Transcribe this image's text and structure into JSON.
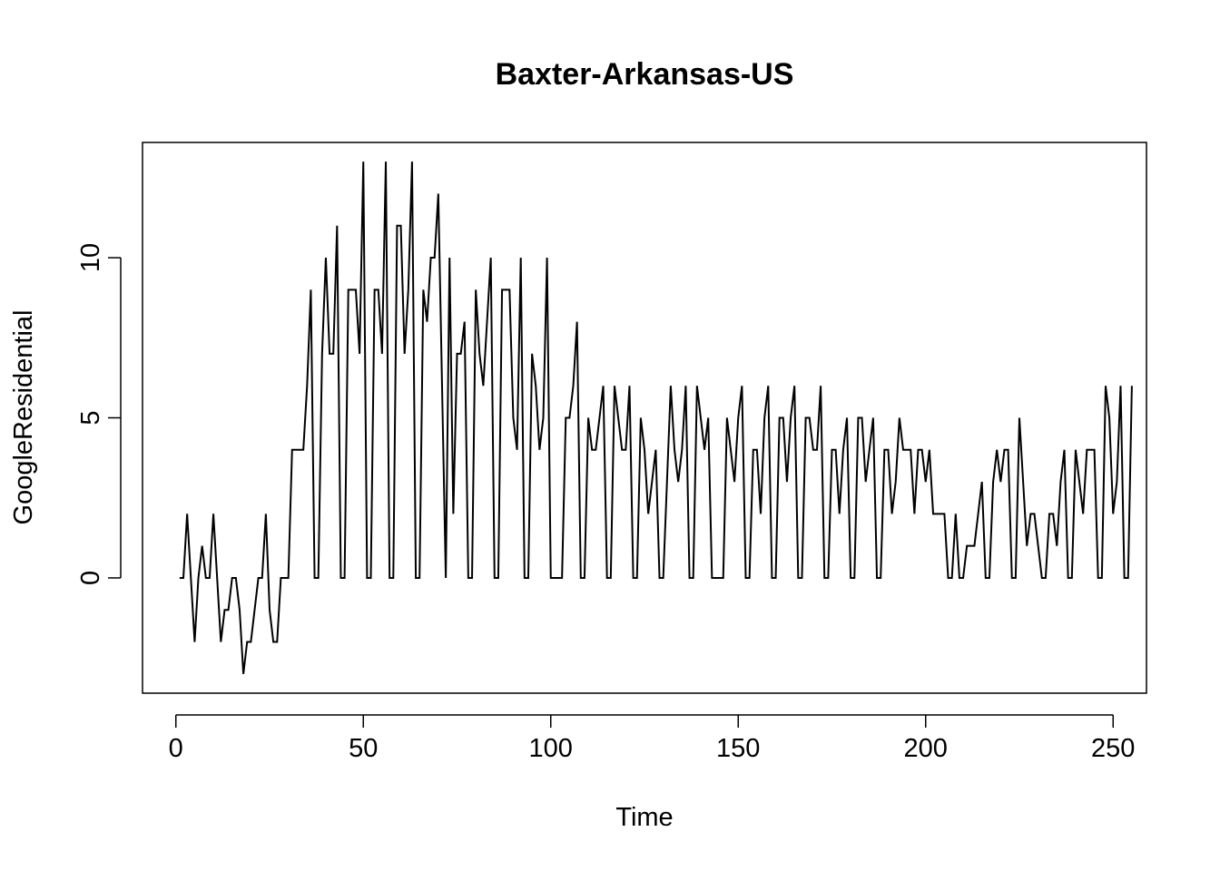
{
  "chart_data": {
    "type": "line",
    "title": "Baxter-Arkansas-US",
    "xlabel": "Time",
    "ylabel": "GoogleResidential",
    "xlim": [
      -8.9,
      258.9
    ],
    "ylim": [
      -3.6,
      13.6
    ],
    "xticks": [
      0,
      50,
      100,
      150,
      200,
      250
    ],
    "yticks": [
      0,
      5,
      10
    ],
    "grid": false,
    "legend": "none",
    "series": [
      {
        "color": "#000000",
        "x_start": 1,
        "values": [
          0,
          0,
          2,
          0,
          -2,
          0,
          1,
          0,
          0,
          2,
          0,
          -2,
          -1,
          -1,
          0,
          0,
          -1,
          -3,
          -2,
          -2,
          -1,
          0,
          0,
          2,
          -1,
          -2,
          -2,
          0,
          0,
          0,
          4,
          4,
          4,
          4,
          6,
          9,
          0,
          0,
          7,
          10,
          7,
          7,
          11,
          0,
          0,
          9,
          9,
          9,
          7,
          13,
          0,
          0,
          9,
          9,
          7,
          13,
          0,
          0,
          11,
          11,
          7,
          9,
          13,
          0,
          0,
          9,
          8,
          10,
          10,
          12,
          6,
          0,
          10,
          2,
          7,
          7,
          8,
          0,
          0,
          9,
          7,
          6,
          8,
          10,
          0,
          0,
          9,
          9,
          9,
          5,
          4,
          10,
          0,
          0,
          7,
          6,
          4,
          5,
          10,
          0,
          0,
          0,
          0,
          5,
          5,
          6,
          8,
          0,
          0,
          5,
          4,
          4,
          5,
          6,
          0,
          0,
          6,
          5,
          4,
          4,
          6,
          0,
          0,
          5,
          4,
          2,
          3,
          4,
          0,
          0,
          3,
          6,
          4,
          3,
          4,
          6,
          0,
          0,
          6,
          5,
          4,
          5,
          0,
          0,
          0,
          0,
          5,
          4,
          3,
          5,
          6,
          0,
          0,
          4,
          4,
          2,
          5,
          6,
          0,
          0,
          5,
          5,
          3,
          5,
          6,
          0,
          0,
          5,
          5,
          4,
          4,
          6,
          0,
          0,
          4,
          4,
          2,
          4,
          5,
          0,
          0,
          5,
          5,
          3,
          4,
          5,
          0,
          0,
          4,
          4,
          2,
          3,
          5,
          4,
          4,
          4,
          2,
          4,
          4,
          3,
          4,
          2,
          2,
          2,
          2,
          0,
          0,
          2,
          0,
          0,
          1,
          1,
          1,
          2,
          3,
          0,
          0,
          3,
          4,
          3,
          4,
          4,
          0,
          0,
          5,
          3,
          1,
          2,
          2,
          1,
          0,
          0,
          2,
          2,
          1,
          3,
          4,
          0,
          0,
          4,
          3,
          2,
          4,
          4,
          4,
          0,
          0,
          6,
          5,
          2,
          3,
          6,
          0,
          0,
          6
        ]
      }
    ]
  }
}
